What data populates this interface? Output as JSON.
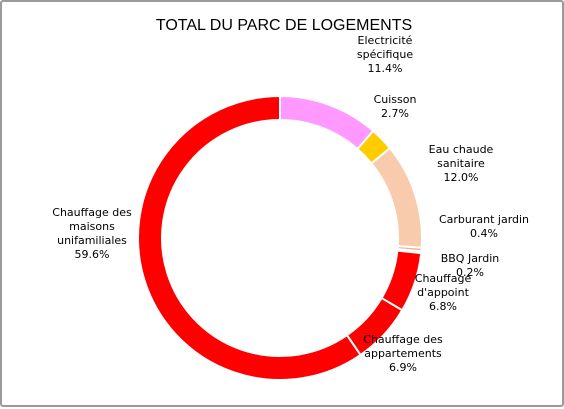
{
  "chart_data": {
    "type": "pie",
    "donut": true,
    "title": "TOTAL DU PARC DE LOGEMENTS",
    "slices": [
      {
        "label": "Electricité spécifique",
        "lines": [
          "Electricité",
          "spécifique"
        ],
        "percent": "11.4%",
        "value": 11.4,
        "color": "#FF99FF"
      },
      {
        "label": "Cuisson",
        "lines": [
          "Cuisson"
        ],
        "percent": "2.7%",
        "value": 2.7,
        "color": "#FFCC00"
      },
      {
        "label": "Eau chaude sanitaire",
        "lines": [
          "Eau chaude",
          "sanitaire"
        ],
        "percent": "12.0%",
        "value": 12.0,
        "color": "#F8CBAD"
      },
      {
        "label": "Carburant jardin",
        "lines": [
          "Carburant jardin"
        ],
        "percent": "0.4%",
        "value": 0.4,
        "color": "#F4B183"
      },
      {
        "label": "BBQ Jardin",
        "lines": [
          "BBQ Jardin"
        ],
        "percent": "0.2%",
        "value": 0.2,
        "color": "#E2E2E2"
      },
      {
        "label": "Chauffage d'appoint",
        "lines": [
          "Chauffage",
          "d'appoint"
        ],
        "percent": "6.8%",
        "value": 6.8,
        "color": "#FF0000"
      },
      {
        "label": "Chauffage des appartements",
        "lines": [
          "Chauffage des",
          "appartements"
        ],
        "percent": "6.9%",
        "value": 6.9,
        "color": "#FF0000"
      },
      {
        "label": "Chauffage des maisons unifamiliales",
        "lines": [
          "Chauffage des",
          "maisons",
          "unifamiliales"
        ],
        "percent": "59.6%",
        "value": 59.6,
        "color": "#FF0000"
      }
    ]
  }
}
